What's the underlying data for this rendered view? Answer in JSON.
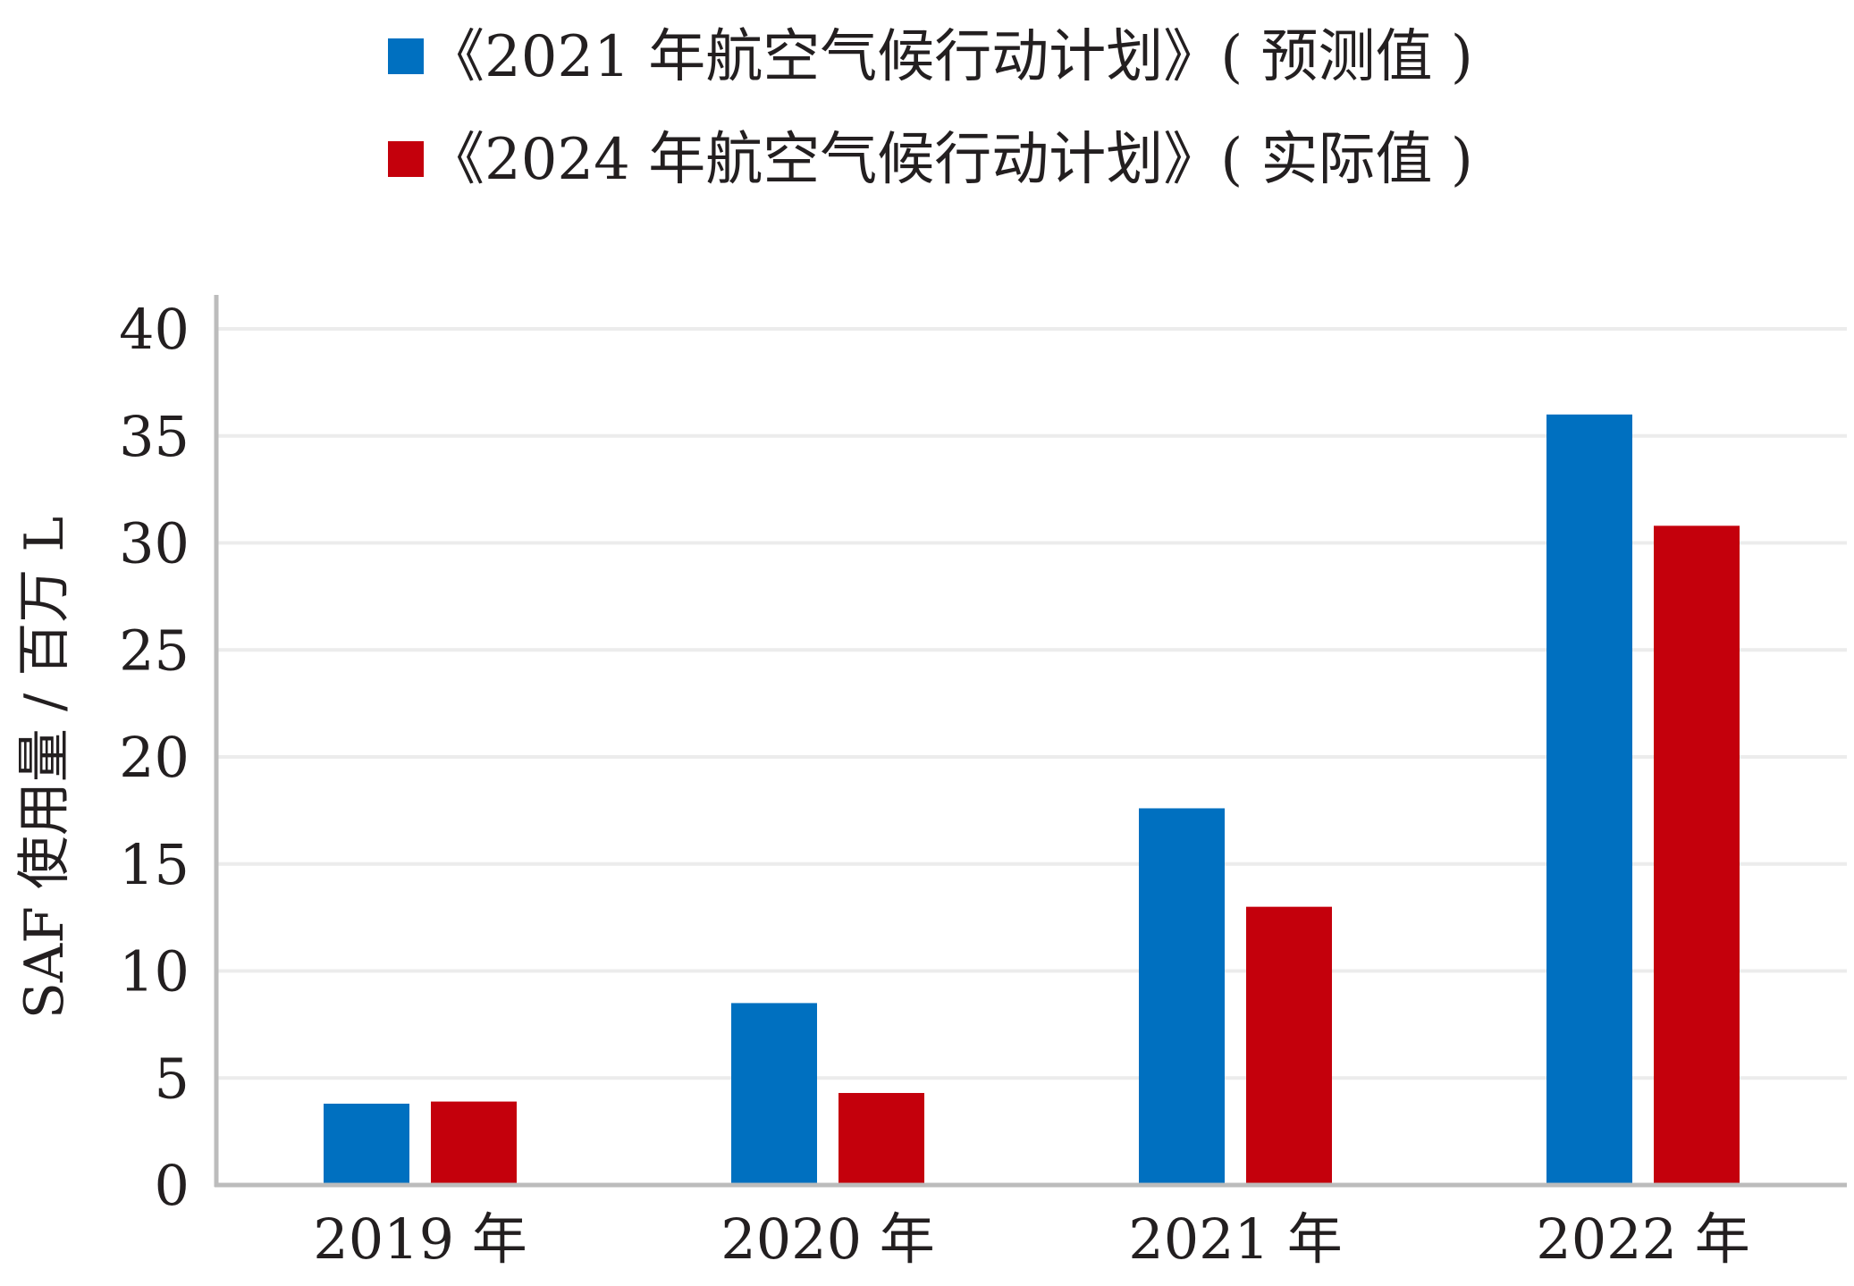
{
  "chart_data": {
    "type": "bar",
    "categories": [
      "2019 年",
      "2020 年",
      "2021 年",
      "2022 年"
    ],
    "series": [
      {
        "name": "《2021 年航空气候行动计划》( 预测值 )",
        "color": "#0070c0",
        "values": [
          3.8,
          8.5,
          17.6,
          36.0
        ]
      },
      {
        "name": "《2024 年航空气候行动计划》( 实际值 )",
        "color": "#c4000c",
        "values": [
          3.9,
          4.3,
          13.0,
          30.8
        ]
      }
    ],
    "ylabel": "SAF 使用量 / 百万 L",
    "ylim": [
      0,
      40
    ],
    "yticks": [
      "0",
      "5",
      "10",
      "15",
      "20",
      "25",
      "30",
      "35",
      "40"
    ],
    "grid": true,
    "legend_position": "top"
  }
}
